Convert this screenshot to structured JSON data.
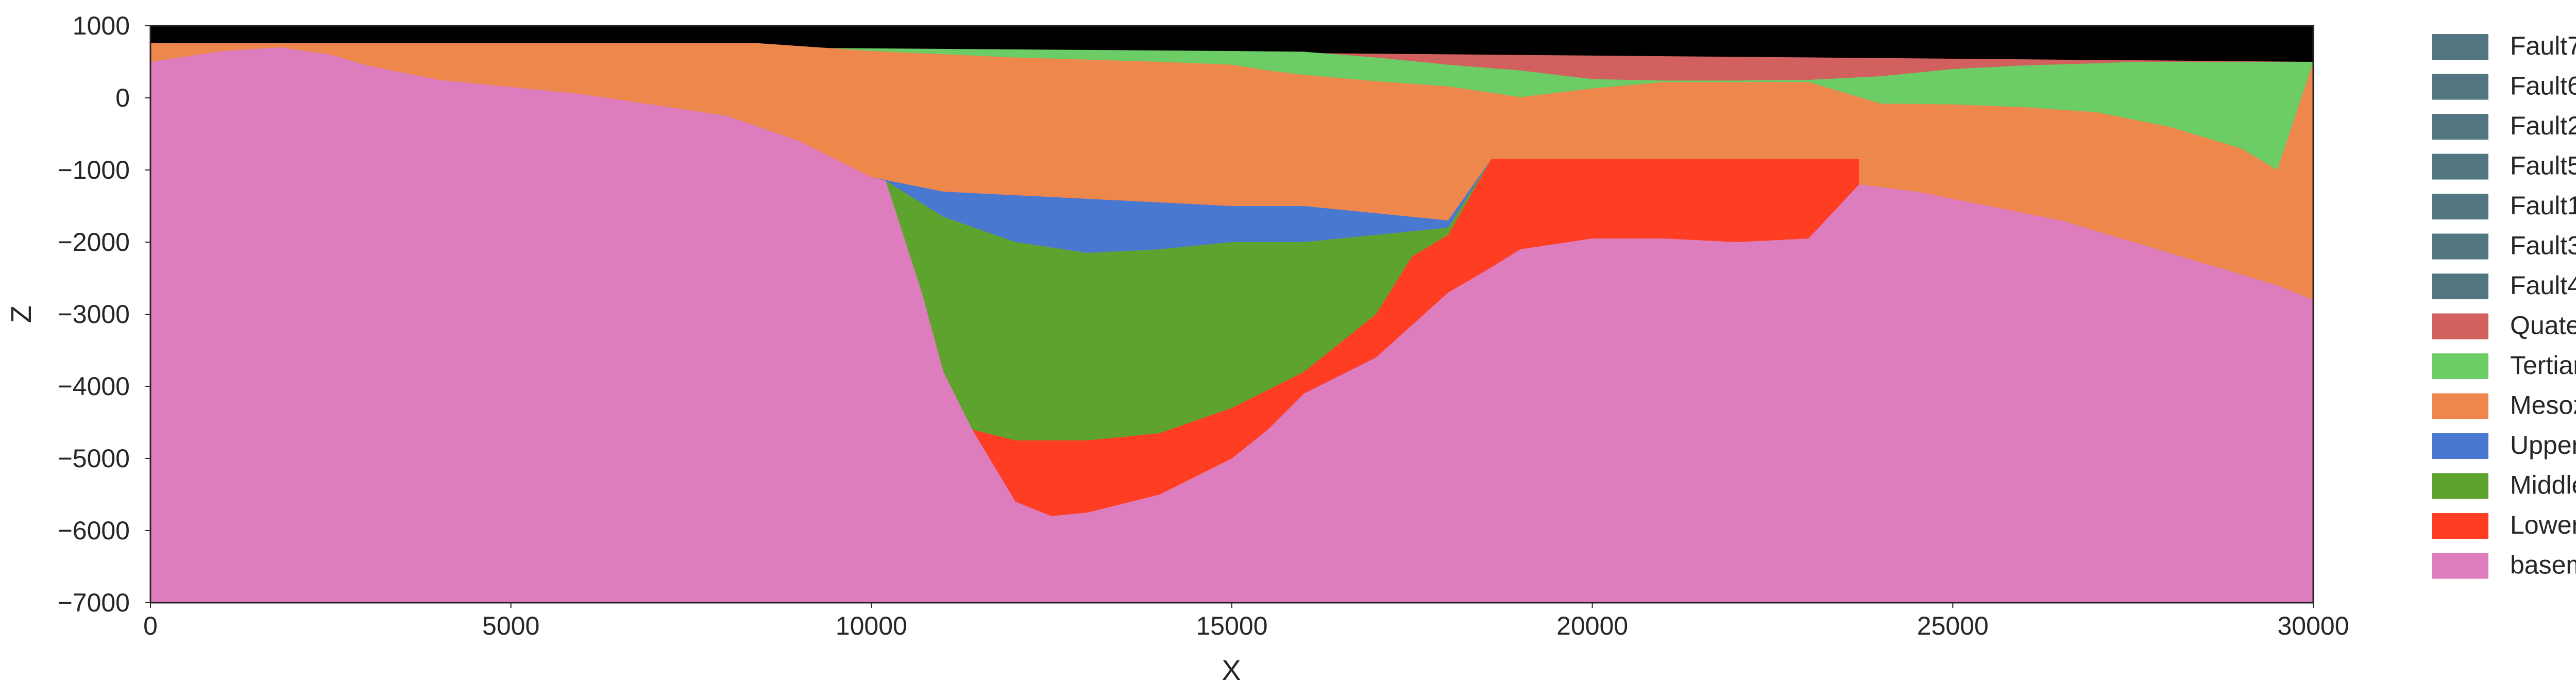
{
  "chart_data": {
    "type": "area",
    "title": "",
    "xlabel": "X",
    "ylabel": "Z",
    "xlim": [
      0,
      30000
    ],
    "ylim": [
      -7000,
      1000
    ],
    "xticks": [
      0,
      5000,
      10000,
      15000,
      20000,
      25000,
      30000
    ],
    "yticks": [
      -7000,
      -6000,
      -5000,
      -4000,
      -3000,
      -2000,
      -1000,
      0,
      1000
    ],
    "xtick_labels": [
      "0",
      "5000",
      "10000",
      "15000",
      "20000",
      "25000",
      "30000"
    ],
    "ytick_labels": [
      "−7000",
      "−6000",
      "−5000",
      "−4000",
      "−3000",
      "−2000",
      "−1000",
      "0",
      "1000"
    ],
    "grid": false,
    "legend_position": "outside-right",
    "background_above_surface": "#000000",
    "legend": [
      {
        "name": "Fault7",
        "color": "#527682"
      },
      {
        "name": "Fault6",
        "color": "#527682"
      },
      {
        "name": "Fault2",
        "color": "#527682"
      },
      {
        "name": "Fault5",
        "color": "#527682"
      },
      {
        "name": "Fault1",
        "color": "#527682"
      },
      {
        "name": "Fault3",
        "color": "#527682"
      },
      {
        "name": "Fault4",
        "color": "#527682"
      },
      {
        "name": "Quaternary",
        "color": "#d1605e"
      },
      {
        "name": "Tertiary",
        "color": "#6ccc66"
      },
      {
        "name": "Mesozoic",
        "color": "#ee874c"
      },
      {
        "name": "Upper-filling",
        "color": "#4878cf"
      },
      {
        "name": "Middle-filling",
        "color": "#5ea32e"
      },
      {
        "name": "Lower-filling",
        "color": "#ff3d22"
      },
      {
        "name": "basement",
        "color": "#de7dbe"
      }
    ],
    "surface_top": {
      "x": [
        0,
        30000
      ],
      "z": [
        760,
        500
      ]
    },
    "boundaries": [
      {
        "name": "Quaternary_base",
        "x": [
          0,
          15000,
          16000,
          17000,
          18000,
          19000,
          20000,
          21000,
          22000,
          23000,
          24000,
          25000,
          26000,
          27000,
          27500,
          30000
        ],
        "z": [
          760,
          650,
          640,
          560,
          460,
          380,
          260,
          240,
          240,
          250,
          300,
          400,
          450,
          480,
          500,
          500
        ]
      },
      {
        "name": "Tertiary_base",
        "x": [
          0,
          8400,
          10000,
          12000,
          14000,
          15000,
          15500,
          16000,
          17000,
          18000,
          19000,
          20000,
          21000,
          22000,
          23000,
          24000,
          25000,
          26000,
          27000,
          28000,
          29000,
          29500,
          30000
        ],
        "z": [
          760,
          760,
          650,
          560,
          500,
          460,
          380,
          320,
          230,
          160,
          10,
          130,
          220,
          220,
          220,
          -80,
          -90,
          -130,
          -200,
          -400,
          -700,
          -1000,
          500
        ]
      },
      {
        "name": "Mesozoic_base",
        "x": [
          0,
          1000,
          1800,
          2500,
          3000,
          4000,
          5000,
          6000,
          7000,
          8000,
          9000,
          10000,
          10500,
          11000,
          12000,
          13000,
          14000,
          15000,
          16000,
          17000,
          18000,
          18600,
          19000,
          20000,
          21000,
          22000,
          23000,
          23700,
          24500,
          25500,
          26500,
          27500,
          28500,
          29500,
          30000
        ],
        "z": [
          500,
          650,
          700,
          600,
          450,
          250,
          150,
          50,
          -100,
          -250,
          -600,
          -1100,
          -1200,
          -1300,
          -1350,
          -1400,
          -1450,
          -1500,
          -1500,
          -1600,
          -1700,
          -850,
          -1000,
          -1000,
          -1050,
          -1050,
          -1100,
          -1200,
          -1300,
          -1500,
          -1700,
          -2000,
          -2300,
          -2600,
          -2800
        ]
      },
      {
        "name": "Upper-filling_base",
        "x": [
          7000,
          8000,
          9000,
          10000,
          10200,
          11000,
          12000,
          13000,
          14000,
          15000,
          16000,
          17000,
          18000,
          18600
        ],
        "z": [
          -100,
          -250,
          -600,
          -1100,
          -1150,
          -1650,
          -2000,
          -2150,
          -2100,
          -2000,
          -2000,
          -1900,
          -1800,
          -850
        ]
      },
      {
        "name": "Middle-filling_base",
        "x": [
          10200,
          10700,
          11000,
          11400,
          12000,
          13000,
          14000,
          15000,
          16000,
          17000,
          17500,
          18000,
          18600
        ],
        "z": [
          -1150,
          -2700,
          -3800,
          -4600,
          -4750,
          -4750,
          -4650,
          -4300,
          -3800,
          -3000,
          -2200,
          -1900,
          -850
        ]
      },
      {
        "name": "Lower-filling_base",
        "x": [
          11400,
          12000,
          12500,
          13000,
          14000,
          15000,
          15500,
          16000,
          17000,
          18000,
          18600,
          19000,
          20000,
          21000,
          22000,
          23000,
          23700
        ],
        "z": [
          -4600,
          -5600,
          -5800,
          -5750,
          -5500,
          -5000,
          -4600,
          -4100,
          -3600,
          -2700,
          -2350,
          -2100,
          -1950,
          -1950,
          -2000,
          -1950,
          -1200
        ]
      }
    ]
  }
}
